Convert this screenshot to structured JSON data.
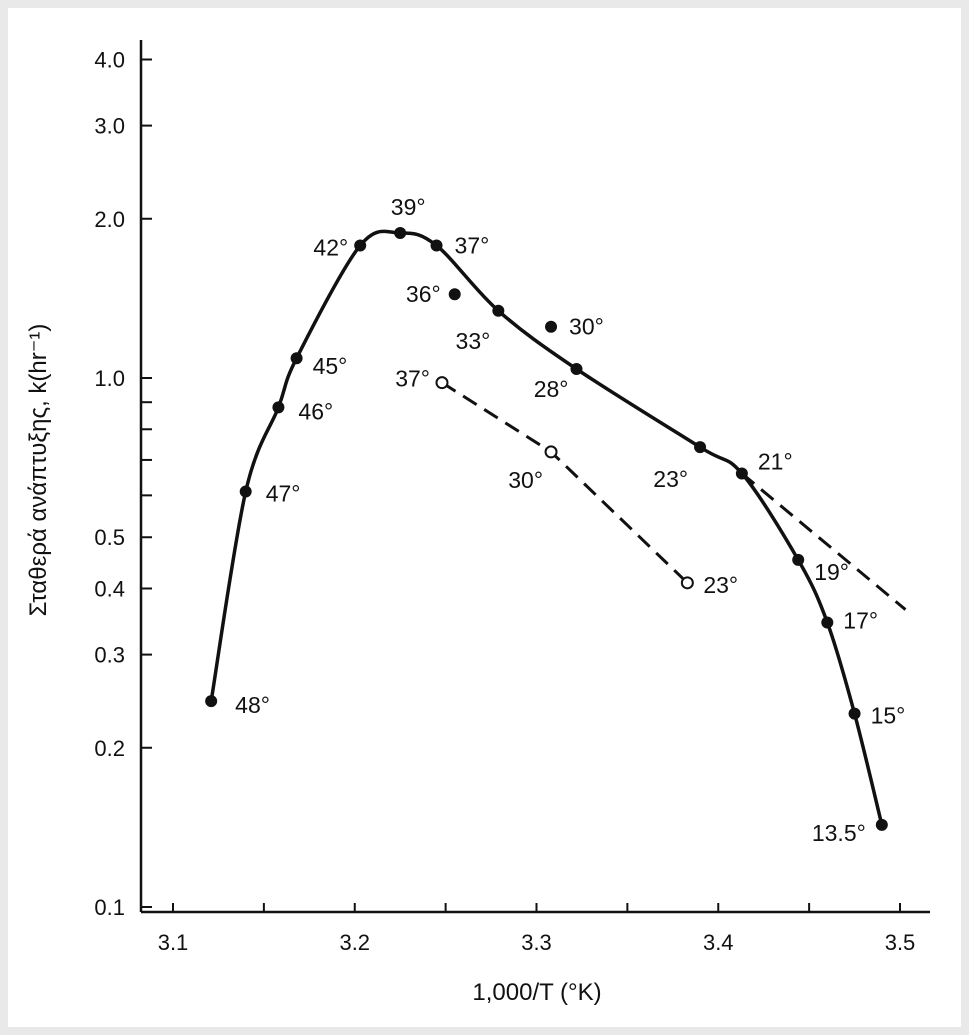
{
  "chart_data": {
    "type": "line",
    "title": "",
    "xlabel": "1,000/T (°K)",
    "ylabel": "Σταθερά ανάπτυξης, k(hr⁻¹)",
    "x_scale": "linear",
    "y_scale": "log",
    "xlim": [
      3.1,
      3.5
    ],
    "ylim": [
      0.1,
      4.5
    ],
    "x_ticks": [
      3.1,
      3.2,
      3.3,
      3.4,
      3.5
    ],
    "x_tick_labels": [
      "3.1",
      "3.2",
      "3.3",
      "3.4",
      "3.5"
    ],
    "x_minor_ticks": [
      3.15,
      3.25,
      3.35,
      3.45
    ],
    "y_ticks": [
      0.1,
      0.2,
      0.3,
      0.4,
      0.5,
      0.6,
      0.7,
      0.8,
      0.9,
      1.0,
      2.0,
      3.0,
      4.0
    ],
    "y_tick_labels": [
      "0.1",
      "0.2",
      "0.3",
      "0.4",
      "0.5",
      "",
      "",
      "",
      "",
      "1.0",
      "2.0",
      "3.0",
      "4.0"
    ],
    "grid": false,
    "legend": "none",
    "series": [
      {
        "style": "solid",
        "marker": "filled",
        "points": [
          {
            "x": 3.121,
            "y": 0.245,
            "label": "48°"
          },
          {
            "x": 3.14,
            "y": 0.61,
            "label": "47°"
          },
          {
            "x": 3.158,
            "y": 0.88,
            "label": "46°"
          },
          {
            "x": 3.168,
            "y": 1.09,
            "label": "45°"
          },
          {
            "x": 3.203,
            "y": 1.78,
            "label": "42°"
          },
          {
            "x": 3.225,
            "y": 1.88,
            "label": "39°"
          },
          {
            "x": 3.245,
            "y": 1.78,
            "label": "37°"
          },
          {
            "x": 3.279,
            "y": 1.34,
            "label": "33°"
          },
          {
            "x": 3.322,
            "y": 1.04,
            "label": "28°"
          },
          {
            "x": 3.39,
            "y": 0.74,
            "label": "23°"
          },
          {
            "x": 3.413,
            "y": 0.66,
            "label": "21°"
          },
          {
            "x": 3.444,
            "y": 0.453,
            "label": "19°"
          },
          {
            "x": 3.46,
            "y": 0.345,
            "label": "17°"
          },
          {
            "x": 3.475,
            "y": 0.232,
            "label": "15°"
          },
          {
            "x": 3.49,
            "y": 0.143,
            "label": "13.5°"
          }
        ]
      },
      {
        "style": "none",
        "marker": "filled",
        "points": [
          {
            "x": 3.255,
            "y": 1.44,
            "label": "36°"
          },
          {
            "x": 3.308,
            "y": 1.25,
            "label": "30°"
          }
        ]
      },
      {
        "style": "dashed",
        "marker": "open",
        "points": [
          {
            "x": 3.248,
            "y": 0.98,
            "label": "37°"
          },
          {
            "x": 3.308,
            "y": 0.725,
            "label": "30°"
          },
          {
            "x": 3.383,
            "y": 0.41,
            "label": "23°"
          }
        ]
      },
      {
        "style": "dashed",
        "marker": "none",
        "points": [
          {
            "x": 3.413,
            "y": 0.66
          },
          {
            "x": 3.503,
            "y": 0.365
          }
        ]
      }
    ]
  }
}
